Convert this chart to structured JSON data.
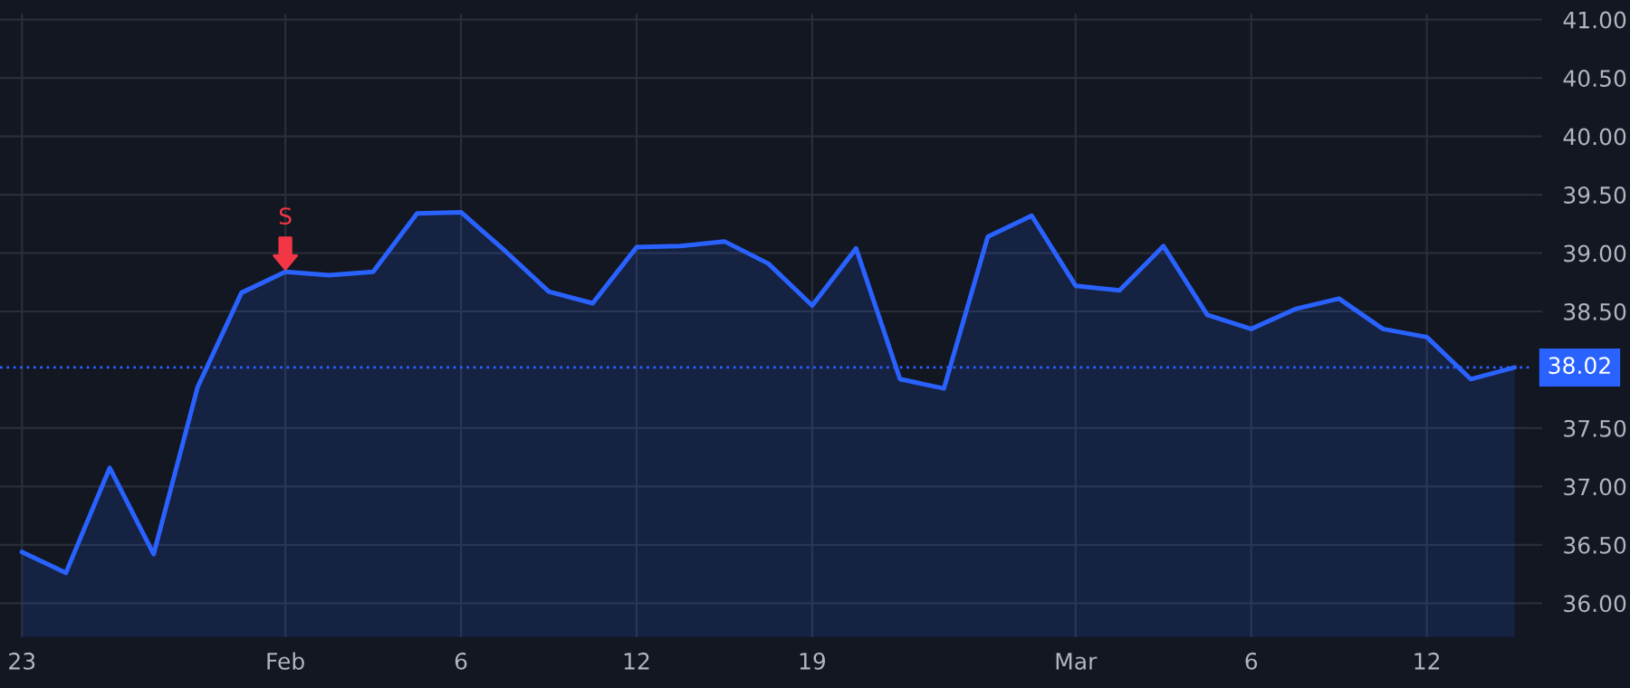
{
  "chart_data": {
    "type": "area",
    "categories": [
      "23",
      null,
      null,
      null,
      null,
      null,
      "Feb",
      null,
      null,
      null,
      "6",
      null,
      null,
      null,
      "12",
      null,
      null,
      null,
      "19",
      null,
      null,
      null,
      null,
      null,
      "Mar",
      null,
      null,
      null,
      "6",
      null,
      null,
      null,
      "12",
      null,
      null
    ],
    "series": [
      {
        "color": "#2962ff",
        "values": [
          36.44,
          36.26,
          37.16,
          36.42,
          37.85,
          38.66,
          38.84,
          38.81,
          38.84,
          39.34,
          39.35,
          39.02,
          38.67,
          38.57,
          39.05,
          39.06,
          39.1,
          38.91,
          38.55,
          39.04,
          37.92,
          37.84,
          39.14,
          39.32,
          38.72,
          38.68,
          39.06,
          38.47,
          38.35,
          38.52,
          38.61,
          38.35,
          38.28,
          37.92,
          38.02
        ]
      }
    ],
    "ylim": [
      35.71,
      41.05
    ],
    "yticks": [
      {
        "value": 36,
        "label": "36.00"
      },
      {
        "value": 36.5,
        "label": "36.50"
      },
      {
        "value": 37,
        "label": "37.00"
      },
      {
        "value": 37.5,
        "label": "37.50"
      },
      {
        "value": 38.5,
        "label": "38.50"
      },
      {
        "value": 39,
        "label": "39.00"
      },
      {
        "value": 39.5,
        "label": "39.50"
      },
      {
        "value": 40,
        "label": "40.00"
      },
      {
        "value": 40.5,
        "label": "40.50"
      },
      {
        "value": 41,
        "label": "41.00"
      }
    ],
    "ref_lines": [
      {
        "axis": "y",
        "value": 38.02,
        "label": "38.02",
        "color": "#2962ff",
        "line_style": "dotted"
      }
    ],
    "annotations": [
      {
        "text": "S",
        "x": "Feb",
        "y": 38.84
      }
    ],
    "grid": true,
    "line_style": "solid"
  }
}
